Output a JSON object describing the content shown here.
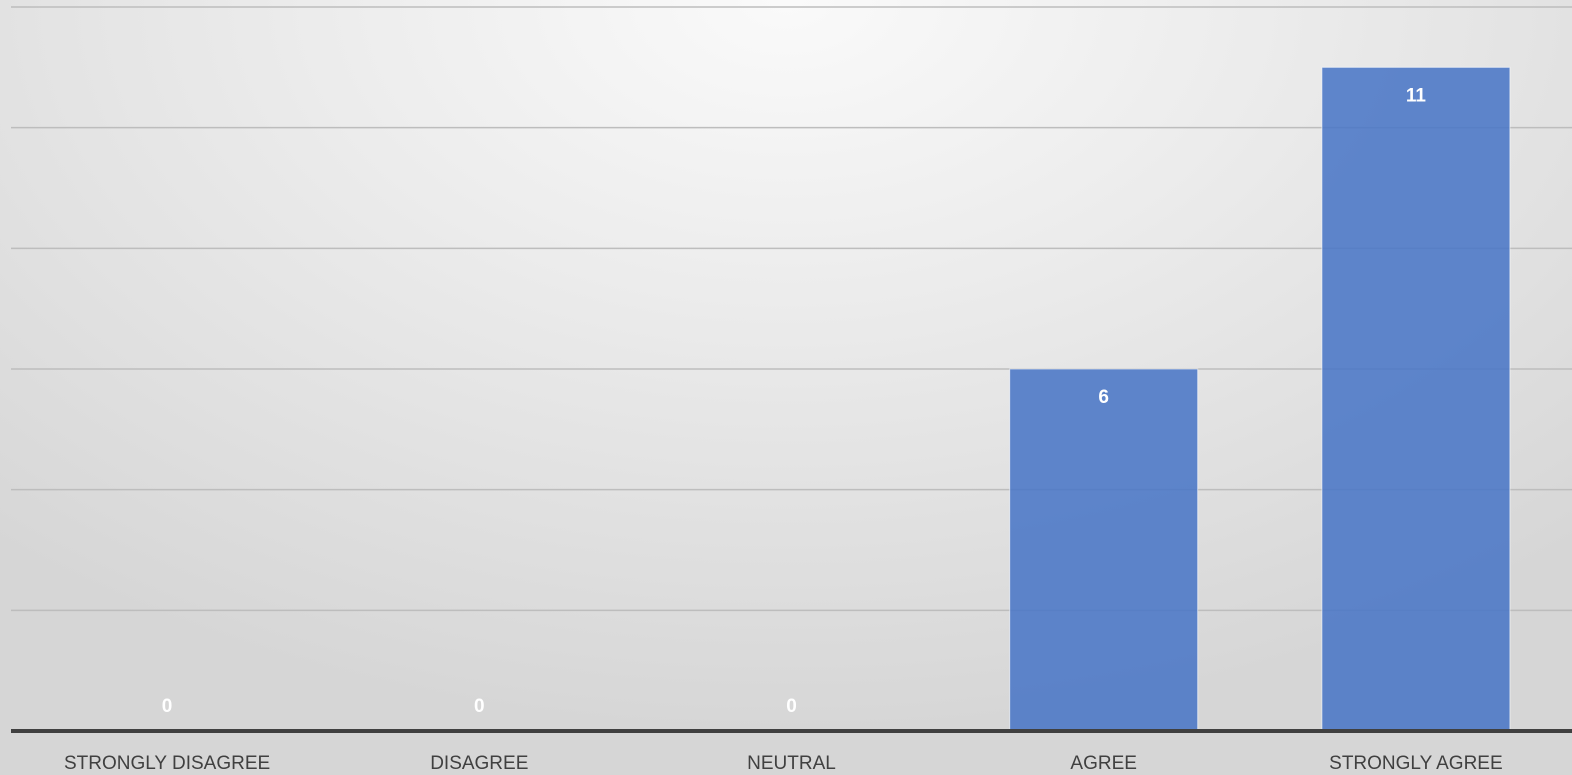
{
  "chart_data": {
    "type": "bar",
    "categories": [
      "STRONGLY DISAGREE",
      "DISAGREE",
      "NEUTRAL",
      "AGREE",
      "STRONGLY AGREE"
    ],
    "values": [
      0,
      0,
      0,
      6,
      11
    ],
    "ylim": [
      0,
      12
    ],
    "gridline_step": 2,
    "grid": true,
    "data_labels": true,
    "title": "",
    "xlabel": "",
    "ylabel": "",
    "colors": {
      "bar": "#4a76c6",
      "data_label": "#ffffff",
      "axis": "#404040",
      "grid": "#bdbdbd"
    }
  }
}
